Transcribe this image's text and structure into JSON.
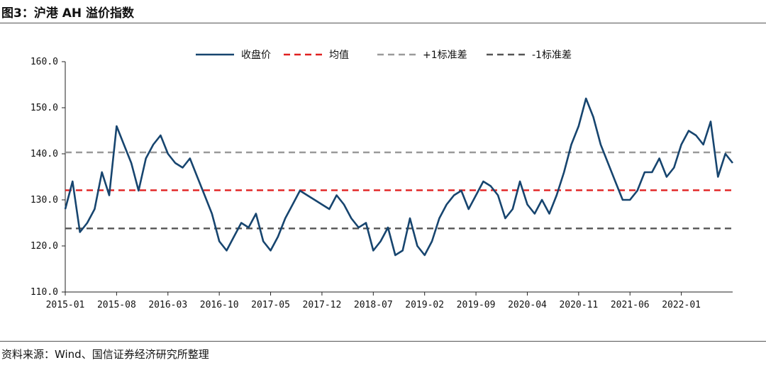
{
  "figure": {
    "title": "图3：沪港 AH 溢价指数",
    "source": "资料来源：Wind、国信证券经济研究所整理"
  },
  "legend": [
    {
      "label": "收盘价",
      "color": "#17456f",
      "dash": "solid"
    },
    {
      "label": "均值",
      "color": "#e02020",
      "dash": "dashed"
    },
    {
      "label": "+1标准差",
      "color": "#9a9a9a",
      "dash": "dashed"
    },
    {
      "label": "-1标准差",
      "color": "#555555",
      "dash": "dashed"
    }
  ],
  "chart_data": {
    "type": "line",
    "title": "沪港 AH 溢价指数",
    "xlabel": "",
    "ylabel": "",
    "ylim": [
      110,
      160
    ],
    "yticks": [
      "110.0",
      "120.0",
      "130.0",
      "140.0",
      "150.0",
      "160.0"
    ],
    "xticks": [
      "2015-01",
      "2015-08",
      "2016-03",
      "2016-10",
      "2017-05",
      "2017-12",
      "2018-07",
      "2019-02",
      "2019-09",
      "2020-04",
      "2020-11",
      "2021-06",
      "2022-01"
    ],
    "grid": false,
    "legend_position": "top",
    "x": [
      "2015-01",
      "2015-02",
      "2015-03",
      "2015-04",
      "2015-05",
      "2015-06",
      "2015-07",
      "2015-08",
      "2015-09",
      "2015-10",
      "2015-11",
      "2015-12",
      "2016-01",
      "2016-02",
      "2016-03",
      "2016-04",
      "2016-05",
      "2016-06",
      "2016-07",
      "2016-08",
      "2016-09",
      "2016-10",
      "2016-11",
      "2016-12",
      "2017-01",
      "2017-02",
      "2017-03",
      "2017-04",
      "2017-05",
      "2017-06",
      "2017-07",
      "2017-08",
      "2017-09",
      "2017-10",
      "2017-11",
      "2017-12",
      "2018-01",
      "2018-02",
      "2018-03",
      "2018-04",
      "2018-05",
      "2018-06",
      "2018-07",
      "2018-08",
      "2018-09",
      "2018-10",
      "2018-11",
      "2018-12",
      "2019-01",
      "2019-02",
      "2019-03",
      "2019-04",
      "2019-05",
      "2019-06",
      "2019-07",
      "2019-08",
      "2019-09",
      "2019-10",
      "2019-11",
      "2019-12",
      "2020-01",
      "2020-02",
      "2020-03",
      "2020-04",
      "2020-05",
      "2020-06",
      "2020-07",
      "2020-08",
      "2020-09",
      "2020-10",
      "2020-11",
      "2020-12",
      "2021-01",
      "2021-02",
      "2021-03",
      "2021-04",
      "2021-05",
      "2021-06",
      "2021-07",
      "2021-08",
      "2021-09",
      "2021-10",
      "2021-11",
      "2021-12",
      "2022-01",
      "2022-02",
      "2022-03",
      "2022-04",
      "2022-05",
      "2022-06",
      "2022-07",
      "2022-08"
    ],
    "series": [
      {
        "name": "收盘价",
        "values": [
          128,
          134,
          123,
          125,
          128,
          136,
          131,
          146,
          142,
          138,
          132,
          139,
          142,
          144,
          140,
          138,
          137,
          139,
          135,
          131,
          127,
          121,
          119,
          122,
          125,
          124,
          127,
          121,
          119,
          122,
          126,
          129,
          132,
          131,
          130,
          129,
          128,
          131,
          129,
          126,
          124,
          125,
          119,
          121,
          124,
          118,
          119,
          126,
          120,
          118,
          121,
          126,
          129,
          131,
          132,
          128,
          131,
          134,
          133,
          131,
          126,
          128,
          134,
          129,
          127,
          130,
          127,
          131,
          136,
          142,
          146,
          152,
          148,
          142,
          138,
          134,
          130,
          130,
          132,
          136,
          136,
          139,
          135,
          137,
          142,
          145,
          144,
          142,
          147,
          135,
          140,
          138
        ]
      },
      {
        "name": "均值",
        "values": [
          132.1,
          132.1,
          132.1,
          132.1,
          132.1,
          132.1,
          132.1,
          132.1,
          132.1,
          132.1,
          132.1,
          132.1,
          132.1,
          132.1,
          132.1,
          132.1,
          132.1,
          132.1,
          132.1,
          132.1,
          132.1,
          132.1,
          132.1,
          132.1,
          132.1,
          132.1,
          132.1,
          132.1,
          132.1,
          132.1,
          132.1,
          132.1,
          132.1,
          132.1,
          132.1,
          132.1,
          132.1,
          132.1,
          132.1,
          132.1,
          132.1,
          132.1,
          132.1,
          132.1,
          132.1,
          132.1,
          132.1,
          132.1,
          132.1,
          132.1,
          132.1,
          132.1,
          132.1,
          132.1,
          132.1,
          132.1,
          132.1,
          132.1,
          132.1,
          132.1,
          132.1,
          132.1,
          132.1,
          132.1,
          132.1,
          132.1,
          132.1,
          132.1,
          132.1,
          132.1,
          132.1,
          132.1,
          132.1,
          132.1,
          132.1,
          132.1,
          132.1,
          132.1,
          132.1,
          132.1,
          132.1,
          132.1,
          132.1,
          132.1,
          132.1,
          132.1,
          132.1,
          132.1,
          132.1,
          132.1,
          132.1,
          132.1
        ]
      },
      {
        "name": "+1标准差",
        "values": [
          140.3,
          140.3,
          140.3,
          140.3,
          140.3,
          140.3,
          140.3,
          140.3,
          140.3,
          140.3,
          140.3,
          140.3,
          140.3,
          140.3,
          140.3,
          140.3,
          140.3,
          140.3,
          140.3,
          140.3,
          140.3,
          140.3,
          140.3,
          140.3,
          140.3,
          140.3,
          140.3,
          140.3,
          140.3,
          140.3,
          140.3,
          140.3,
          140.3,
          140.3,
          140.3,
          140.3,
          140.3,
          140.3,
          140.3,
          140.3,
          140.3,
          140.3,
          140.3,
          140.3,
          140.3,
          140.3,
          140.3,
          140.3,
          140.3,
          140.3,
          140.3,
          140.3,
          140.3,
          140.3,
          140.3,
          140.3,
          140.3,
          140.3,
          140.3,
          140.3,
          140.3,
          140.3,
          140.3,
          140.3,
          140.3,
          140.3,
          140.3,
          140.3,
          140.3,
          140.3,
          140.3,
          140.3,
          140.3,
          140.3,
          140.3,
          140.3,
          140.3,
          140.3,
          140.3,
          140.3,
          140.3,
          140.3,
          140.3,
          140.3,
          140.3,
          140.3,
          140.3,
          140.3,
          140.3,
          140.3,
          140.3,
          140.3
        ]
      },
      {
        "name": "-1标准差",
        "values": [
          123.8,
          123.8,
          123.8,
          123.8,
          123.8,
          123.8,
          123.8,
          123.8,
          123.8,
          123.8,
          123.8,
          123.8,
          123.8,
          123.8,
          123.8,
          123.8,
          123.8,
          123.8,
          123.8,
          123.8,
          123.8,
          123.8,
          123.8,
          123.8,
          123.8,
          123.8,
          123.8,
          123.8,
          123.8,
          123.8,
          123.8,
          123.8,
          123.8,
          123.8,
          123.8,
          123.8,
          123.8,
          123.8,
          123.8,
          123.8,
          123.8,
          123.8,
          123.8,
          123.8,
          123.8,
          123.8,
          123.8,
          123.8,
          123.8,
          123.8,
          123.8,
          123.8,
          123.8,
          123.8,
          123.8,
          123.8,
          123.8,
          123.8,
          123.8,
          123.8,
          123.8,
          123.8,
          123.8,
          123.8,
          123.8,
          123.8,
          123.8,
          123.8,
          123.8,
          123.8,
          123.8,
          123.8,
          123.8,
          123.8,
          123.8,
          123.8,
          123.8,
          123.8,
          123.8,
          123.8,
          123.8,
          123.8,
          123.8,
          123.8,
          123.8,
          123.8,
          123.8,
          123.8,
          123.8,
          123.8,
          123.8,
          123.8
        ]
      }
    ]
  }
}
